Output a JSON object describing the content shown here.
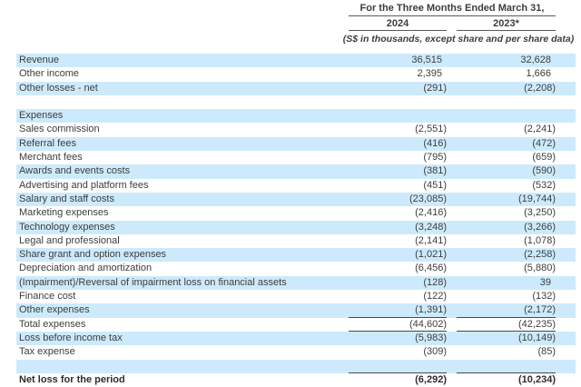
{
  "header": {
    "title": "For the Three Months Ended March 31,",
    "col_2024": "2024",
    "col_2023": "2023*",
    "subtitle": "(S$ in thousands, except share and per share data)"
  },
  "colors": {
    "row_shade": "#cdeafc",
    "text": "#3d3d3d",
    "rule": "#4a4a4a"
  },
  "table": {
    "rows": [
      {
        "label": "Revenue",
        "v2024": "36,515",
        "v2023": "32,628"
      },
      {
        "label": "Other income",
        "v2024": "2,395",
        "v2023": "1,666"
      },
      {
        "label": "Other losses - net",
        "v2024": "(291)",
        "v2023": "(2,208)"
      },
      {
        "label": "",
        "v2024": "",
        "v2023": ""
      },
      {
        "label": "Expenses",
        "v2024": "",
        "v2023": ""
      },
      {
        "label": "Sales commission",
        "v2024": "(2,551)",
        "v2023": "(2,241)"
      },
      {
        "label": "Referral fees",
        "v2024": "(416)",
        "v2023": "(472)"
      },
      {
        "label": "Merchant fees",
        "v2024": "(795)",
        "v2023": "(659)"
      },
      {
        "label": "Awards and events costs",
        "v2024": "(381)",
        "v2023": "(590)"
      },
      {
        "label": "Advertising and platform fees",
        "v2024": "(451)",
        "v2023": "(532)"
      },
      {
        "label": "Salary and staff costs",
        "v2024": "(23,085)",
        "v2023": "(19,744)"
      },
      {
        "label": "Marketing expenses",
        "v2024": "(2,416)",
        "v2023": "(3,250)"
      },
      {
        "label": "Technology expenses",
        "v2024": "(3,248)",
        "v2023": "(3,266)"
      },
      {
        "label": "Legal and professional",
        "v2024": "(2,141)",
        "v2023": "(1,078)"
      },
      {
        "label": "Share grant and option expenses",
        "v2024": "(1,021)",
        "v2023": "(2,258)"
      },
      {
        "label": "Depreciation and amortization",
        "v2024": "(6,456)",
        "v2023": "(5,880)"
      },
      {
        "label": "(Impairment)/Reversal of impairment loss on financial assets",
        "v2024": "(128)",
        "v2023": "39"
      },
      {
        "label": "Finance cost",
        "v2024": "(122)",
        "v2023": "(132)"
      },
      {
        "label": "Other expenses",
        "v2024": "(1,391)",
        "v2023": "(2,172)",
        "rule_below": true
      },
      {
        "label": "Total expenses",
        "v2024": "(44,602)",
        "v2023": "(42,235)",
        "rule_below": true
      },
      {
        "label": "Loss before income tax",
        "v2024": "(5,983)",
        "v2023": "(10,149)"
      },
      {
        "label": "Tax expense",
        "v2024": "(309)",
        "v2023": "(85)"
      },
      {
        "label": "",
        "v2024": "",
        "v2023": "",
        "rule_below": true
      },
      {
        "label": "Net loss for the period",
        "v2024": "(6,292)",
        "v2023": "(10,234)",
        "bold": true
      }
    ]
  }
}
